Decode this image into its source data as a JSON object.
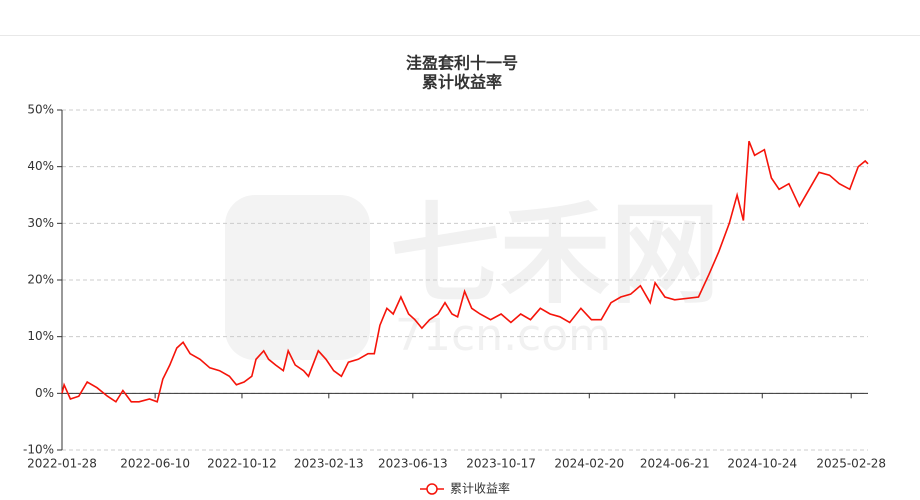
{
  "chart_data": {
    "type": "line",
    "title": "洼盈套利十一号",
    "subtitle": "累计收益率",
    "watermark": "七禾网",
    "watermark_url": "71cn.com",
    "x": [
      "2022-01-28",
      "2022-01-31",
      "2022-02-09",
      "2022-02-21",
      "2022-03-05",
      "2022-03-19",
      "2022-04-03",
      "2022-04-15",
      "2022-04-25",
      "2022-05-07",
      "2022-05-18",
      "2022-06-02",
      "2022-06-13",
      "2022-06-21",
      "2022-07-01",
      "2022-07-11",
      "2022-07-20",
      "2022-07-30",
      "2022-08-13",
      "2022-08-27",
      "2022-09-10",
      "2022-09-24",
      "2022-10-04",
      "2022-10-15",
      "2022-10-26",
      "2022-11-01",
      "2022-11-12",
      "2022-11-19",
      "2022-11-29",
      "2022-12-10",
      "2022-12-17",
      "2022-12-27",
      "2023-01-08",
      "2023-01-15",
      "2023-01-29",
      "2023-02-09",
      "2023-02-20",
      "2023-03-03",
      "2023-03-13",
      "2023-03-27",
      "2023-04-10",
      "2023-04-19",
      "2023-04-27",
      "2023-05-07",
      "2023-05-16",
      "2023-05-27",
      "2023-06-07",
      "2023-06-16",
      "2023-06-26",
      "2023-07-07",
      "2023-07-19",
      "2023-07-29",
      "2023-08-08",
      "2023-08-16",
      "2023-08-26",
      "2023-09-05",
      "2023-09-17",
      "2023-10-02",
      "2023-10-17",
      "2023-10-31",
      "2023-11-14",
      "2023-11-28",
      "2023-12-12",
      "2023-12-26",
      "2024-01-09",
      "2024-01-23",
      "2024-02-08",
      "2024-02-23",
      "2024-03-08",
      "2024-03-22",
      "2024-04-05",
      "2024-04-19",
      "2024-05-03",
      "2024-05-17",
      "2024-05-24",
      "2024-06-07",
      "2024-06-21",
      "2024-07-25",
      "2024-08-09",
      "2024-08-23",
      "2024-09-07",
      "2024-09-18",
      "2024-09-27",
      "2024-10-05",
      "2024-10-13",
      "2024-10-27",
      "2024-11-06",
      "2024-11-17",
      "2024-12-01",
      "2024-12-16",
      "2024-12-30",
      "2025-01-13",
      "2025-01-28",
      "2025-02-11",
      "2025-02-26",
      "2025-03-10",
      "2025-03-20",
      "2025-03-24"
    ],
    "series": [
      {
        "name": "累计收益率",
        "color": "#f5140a",
        "values": [
          0,
          1.5,
          -1,
          -0.5,
          2,
          1,
          -0.5,
          -1.5,
          0.5,
          -1.5,
          -1.5,
          -1,
          -1.5,
          2.5,
          5,
          8,
          9,
          7,
          6,
          4.5,
          4,
          3,
          1.5,
          2,
          3,
          6,
          7.5,
          6,
          5,
          4,
          7.5,
          5,
          4,
          3,
          7.5,
          6,
          4,
          3,
          5.5,
          6,
          7,
          7,
          12,
          15,
          14,
          17,
          14,
          13,
          11.5,
          13,
          14,
          16,
          14,
          13.5,
          18,
          15,
          14,
          13,
          14,
          12.5,
          14,
          13,
          15,
          14,
          13.5,
          12.5,
          15,
          13,
          13,
          16,
          17,
          17.5,
          19,
          16,
          19.5,
          17,
          16.5,
          17,
          21,
          25,
          30,
          35,
          30.5,
          44.5,
          42,
          43,
          38,
          36,
          37,
          33,
          36,
          39,
          38.5,
          37,
          36,
          40,
          41,
          40.5
        ]
      }
    ],
    "xlim": [
      "2022-01-28",
      "2025-03-24"
    ],
    "xticks": [
      "2022-01-28",
      "2022-06-10",
      "2022-10-12",
      "2023-02-13",
      "2023-06-13",
      "2023-10-17",
      "2024-02-20",
      "2024-06-21",
      "2024-10-24",
      "2025-02-28"
    ],
    "ylim": [
      -10,
      50
    ],
    "yticks": [
      {
        "value": -10,
        "label": "-10%"
      },
      {
        "value": 0,
        "label": "0%"
      },
      {
        "value": 10,
        "label": "10%"
      },
      {
        "value": 20,
        "label": "20%"
      },
      {
        "value": 30,
        "label": "30%"
      },
      {
        "value": 40,
        "label": "40%"
      },
      {
        "value": 50,
        "label": "50%"
      }
    ],
    "grid": true,
    "legend": "bottom"
  }
}
